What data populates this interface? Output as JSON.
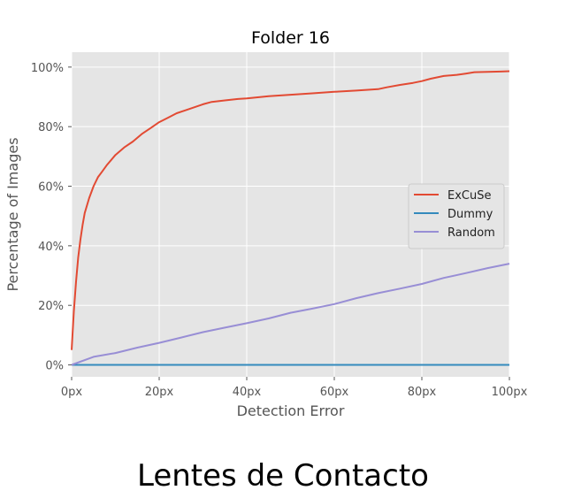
{
  "chart_data": {
    "type": "line",
    "title": "Folder 16",
    "xlabel": "Detection Error",
    "ylabel": "Percentage of Images",
    "xlim": [
      0,
      100
    ],
    "ylim": [
      -4,
      105
    ],
    "x_ticks": [
      {
        "value": 0,
        "label": "0px"
      },
      {
        "value": 20,
        "label": "20px"
      },
      {
        "value": 40,
        "label": "40px"
      },
      {
        "value": 60,
        "label": "60px"
      },
      {
        "value": 80,
        "label": "80px"
      },
      {
        "value": 100,
        "label": "100px"
      }
    ],
    "y_ticks": [
      {
        "value": 0,
        "label": "0%"
      },
      {
        "value": 20,
        "label": "20%"
      },
      {
        "value": 40,
        "label": "40%"
      },
      {
        "value": 60,
        "label": "60%"
      },
      {
        "value": 80,
        "label": "80%"
      },
      {
        "value": 100,
        "label": "100%"
      }
    ],
    "grid": true,
    "legend_position": "center-right",
    "series": [
      {
        "name": "ExCuSe",
        "color": "#e24a33",
        "x": [
          0,
          0.5,
          1,
          1.5,
          2,
          2.5,
          3,
          4,
          5,
          6,
          7,
          8,
          10,
          12,
          14,
          16,
          18,
          20,
          22,
          24,
          26,
          28,
          30,
          32,
          35,
          38,
          40,
          45,
          50,
          55,
          60,
          65,
          70,
          72,
          75,
          78,
          80,
          82,
          85,
          88,
          90,
          92,
          95,
          98,
          100
        ],
        "y": [
          5,
          18,
          28,
          36,
          42,
          47,
          51,
          56,
          60,
          63,
          65,
          67,
          70.5,
          73,
          75,
          77.5,
          79.5,
          81.5,
          83,
          84.5,
          85.5,
          86.5,
          87.5,
          88.3,
          88.8,
          89.3,
          89.5,
          90.2,
          90.7,
          91.2,
          91.7,
          92.1,
          92.6,
          93.2,
          94,
          94.7,
          95.3,
          96.1,
          97,
          97.4,
          97.8,
          98.3,
          98.4,
          98.5,
          98.6
        ]
      },
      {
        "name": "Dummy",
        "color": "#348abd",
        "x": [
          0,
          100
        ],
        "y": [
          0,
          0
        ]
      },
      {
        "name": "Random",
        "color": "#988ed5",
        "x": [
          0,
          5,
          10,
          15,
          20,
          25,
          30,
          35,
          40,
          45,
          50,
          55,
          60,
          65,
          70,
          75,
          80,
          85,
          90,
          95,
          100
        ],
        "y": [
          0,
          2.7,
          4,
          5.8,
          7.4,
          9.2,
          11,
          12.5,
          14,
          15.6,
          17.5,
          18.9,
          20.4,
          22.4,
          24.1,
          25.6,
          27.2,
          29.2,
          30.8,
          32.5,
          34
        ]
      }
    ]
  },
  "caption": "Lentes de Contacto"
}
